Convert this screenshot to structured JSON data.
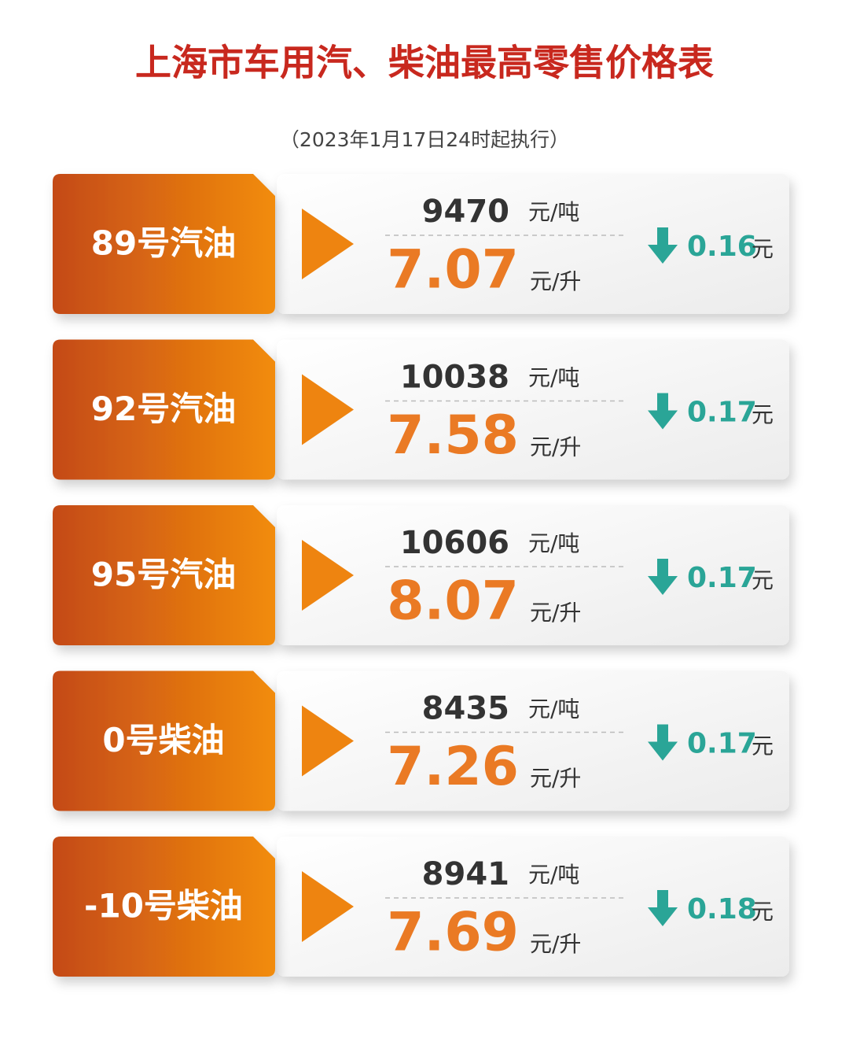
{
  "header": {
    "title": "上海市车用汽、柴油最高零售价格表",
    "subtitle": "（2023年1月17日24时起执行）"
  },
  "rows": [
    {
      "name": "89号汽油",
      "per_ton": "9470",
      "ton_unit": "元/吨",
      "per_liter": "7.07",
      "liter_unit": "元/升",
      "change": "0.16",
      "change_unit": "元"
    },
    {
      "name": "92号汽油",
      "per_ton": "10038",
      "ton_unit": "元/吨",
      "per_liter": "7.58",
      "liter_unit": "元/升",
      "change": "0.17",
      "change_unit": "元"
    },
    {
      "name": "95号汽油",
      "per_ton": "10606",
      "ton_unit": "元/吨",
      "per_liter": "8.07",
      "liter_unit": "元/升",
      "change": "0.17",
      "change_unit": "元"
    },
    {
      "name": "0号柴油",
      "per_ton": "8435",
      "ton_unit": "元/吨",
      "per_liter": "7.26",
      "liter_unit": "元/升",
      "change": "0.17",
      "change_unit": "元"
    },
    {
      "name": "-10号柴油",
      "per_ton": "8941",
      "ton_unit": "元/吨",
      "per_liter": "7.69",
      "liter_unit": "元/升",
      "change": "0.18",
      "change_unit": "元"
    }
  ]
}
